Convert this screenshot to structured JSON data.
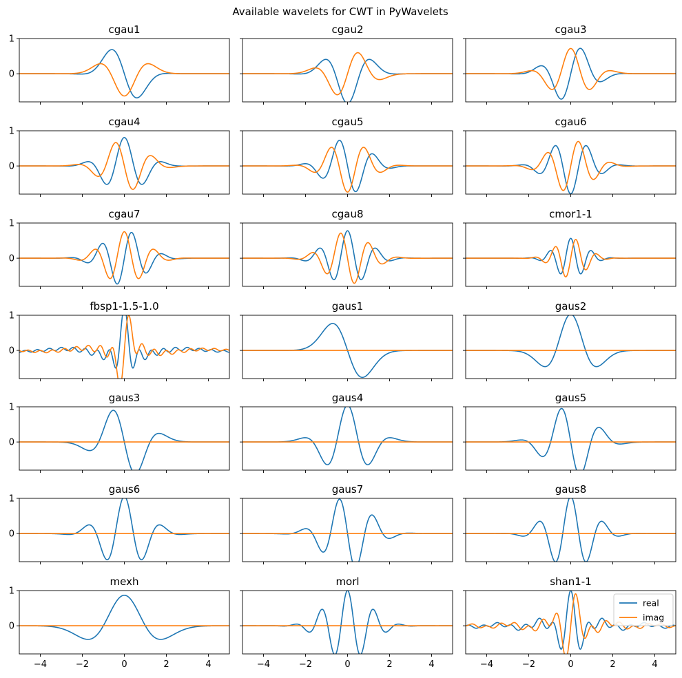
{
  "figure": {
    "title": "Available wavelets for CWT in PyWavelets"
  },
  "colors": {
    "real": "#1f77b4",
    "imag": "#ff7f0e",
    "axes": "#000000",
    "background": "#ffffff"
  },
  "chart_data": {
    "type": "line",
    "layout": {
      "rows": 7,
      "cols": 3,
      "sharex": true,
      "sharey": true
    },
    "xlim": [
      -5,
      5
    ],
    "ylim": [
      -0.8,
      1.0
    ],
    "xticks": [
      -4,
      -2,
      0,
      2,
      4
    ],
    "yticks": [
      0,
      1
    ],
    "xtick_labels": [
      "−4",
      "−2",
      "0",
      "2",
      "4"
    ],
    "ytick_labels": [
      "0",
      "1"
    ],
    "legend": {
      "location": "upper right",
      "panel": "shan1-1",
      "entries": [
        {
          "label": "real",
          "series": "real"
        },
        {
          "label": "imag",
          "series": "imag"
        }
      ]
    },
    "series_names": [
      "real",
      "imag"
    ],
    "panels": [
      {
        "title": "cgau1",
        "family": "cgau",
        "order": 1
      },
      {
        "title": "cgau2",
        "family": "cgau",
        "order": 2
      },
      {
        "title": "cgau3",
        "family": "cgau",
        "order": 3
      },
      {
        "title": "cgau4",
        "family": "cgau",
        "order": 4
      },
      {
        "title": "cgau5",
        "family": "cgau",
        "order": 5
      },
      {
        "title": "cgau6",
        "family": "cgau",
        "order": 6
      },
      {
        "title": "cgau7",
        "family": "cgau",
        "order": 7
      },
      {
        "title": "cgau8",
        "family": "cgau",
        "order": 8
      },
      {
        "title": "cmor1-1",
        "family": "cmor",
        "bandwidth": 1,
        "center_frequency": 1
      },
      {
        "title": "fbsp1-1.5-1.0",
        "family": "fbsp",
        "m": 1,
        "bandwidth": 1.5,
        "center_frequency": 1.0
      },
      {
        "title": "gaus1",
        "family": "gaus",
        "order": 1
      },
      {
        "title": "gaus2",
        "family": "gaus",
        "order": 2
      },
      {
        "title": "gaus3",
        "family": "gaus",
        "order": 3
      },
      {
        "title": "gaus4",
        "family": "gaus",
        "order": 4
      },
      {
        "title": "gaus5",
        "family": "gaus",
        "order": 5
      },
      {
        "title": "gaus6",
        "family": "gaus",
        "order": 6
      },
      {
        "title": "gaus7",
        "family": "gaus",
        "order": 7
      },
      {
        "title": "gaus8",
        "family": "gaus",
        "order": 8
      },
      {
        "title": "mexh",
        "family": "mexh"
      },
      {
        "title": "morl",
        "family": "morl"
      },
      {
        "title": "shan1-1",
        "family": "shan",
        "bandwidth": 1,
        "center_frequency": 1
      }
    ]
  }
}
